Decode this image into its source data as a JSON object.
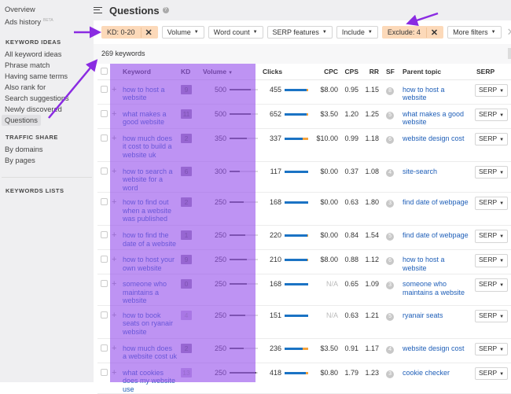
{
  "sidebar": {
    "top_items": [
      {
        "label": "Overview"
      },
      {
        "label": "Ads history",
        "badge": "BETA"
      }
    ],
    "sections": [
      {
        "title": "KEYWORD IDEAS",
        "items": [
          "All keyword ideas",
          "Phrase match",
          "Having same terms",
          "Also rank for",
          "Search suggestions",
          "Newly discovered",
          "Questions"
        ],
        "active": "Questions"
      },
      {
        "title": "TRAFFIC SHARE",
        "items": [
          "By domains",
          "By pages"
        ]
      },
      {
        "title": "KEYWORDS LISTS",
        "items": []
      }
    ]
  },
  "header": {
    "title": "Questions",
    "help_icon": "?"
  },
  "filters": {
    "kd": "KD: 0-20",
    "volume": "Volume",
    "word_count": "Word count",
    "serp_features": "SERP features",
    "include": "Include",
    "exclude": "Exclude: 4",
    "more": "More filters"
  },
  "result_count": "269 keywords",
  "columns": [
    "Keyword",
    "KD",
    "Volume",
    "Clicks",
    "CPC",
    "CPS",
    "RR",
    "SF",
    "Parent topic",
    "SERP"
  ],
  "sort": {
    "column": "Volume",
    "direction": "desc"
  },
  "colors": {
    "highlight": "#bf8ff0",
    "active_filter": "#fcd9b9",
    "link": "#1f5fb8",
    "arrow": "#8a2be2",
    "clicks_organic": "#1b73c4",
    "clicks_paid": "#f4a23c"
  },
  "rows": [
    {
      "keyword": "how to host a website",
      "kd": "9",
      "volume": "500",
      "vol_frac": 0.75,
      "clicks": "455",
      "organic_frac": 0.93,
      "cpc": "$8.00",
      "cps": "0.95",
      "rr": "1.15",
      "sf": "8",
      "parent": "how to host a website",
      "serp": "SERP"
    },
    {
      "keyword": "what makes a good website",
      "kd": "11",
      "volume": "500",
      "vol_frac": 0.75,
      "clicks": "652",
      "organic_frac": 0.93,
      "cpc": "$3.50",
      "cps": "1.20",
      "rr": "1.25",
      "sf": "5",
      "parent": "what makes a good website",
      "serp": "SERP"
    },
    {
      "keyword": "how much does it cost to build a website uk",
      "kd": "2",
      "volume": "350",
      "vol_frac": 0.6,
      "clicks": "337",
      "organic_frac": 0.78,
      "cpc": "$10.00",
      "cps": "0.99",
      "rr": "1.18",
      "sf": "6",
      "parent": "website design cost",
      "serp": "SERP"
    },
    {
      "keyword": "how to search a website for a word",
      "kd": "6",
      "volume": "300",
      "vol_frac": 0.35,
      "clicks": "117",
      "organic_frac": 1.0,
      "cpc": "$0.00",
      "cps": "0.37",
      "rr": "1.08",
      "sf": "4",
      "parent": "site-search",
      "serp": "SERP"
    },
    {
      "keyword": "how to find out when a website was published",
      "kd": "2",
      "volume": "250",
      "vol_frac": 0.5,
      "clicks": "168",
      "organic_frac": 1.0,
      "cpc": "$0.00",
      "cps": "0.63",
      "rr": "1.80",
      "sf": "3",
      "parent": "find date of webpage",
      "serp": "SERP"
    },
    {
      "keyword": "how to find the date of a website",
      "kd": "1",
      "volume": "250",
      "vol_frac": 0.55,
      "clicks": "220",
      "organic_frac": 0.97,
      "cpc": "$0.00",
      "cps": "0.84",
      "rr": "1.54",
      "sf": "5",
      "parent": "find date of webpage",
      "serp": "SERP"
    },
    {
      "keyword": "how to host your own website",
      "kd": "9",
      "volume": "250",
      "vol_frac": 0.6,
      "clicks": "210",
      "organic_frac": 0.95,
      "cpc": "$8.00",
      "cps": "0.88",
      "rr": "1.12",
      "sf": "6",
      "parent": "how to host a website",
      "serp": "SERP"
    },
    {
      "keyword": "someone who maintains a website",
      "kd": "0",
      "volume": "250",
      "vol_frac": 0.6,
      "clicks": "168",
      "organic_frac": 1.0,
      "cpc": "N/A",
      "cps": "0.65",
      "rr": "1.09",
      "sf": "3",
      "parent": "someone who maintains a website",
      "serp": "SERP"
    },
    {
      "keyword": "how to book seats on ryanair website",
      "kd": "4",
      "volume": "250",
      "vol_frac": 0.55,
      "clicks": "151",
      "organic_frac": 1.0,
      "cpc": "N/A",
      "cps": "0.63",
      "rr": "1.21",
      "sf": "5",
      "parent": "ryanair seats",
      "serp": "SERP"
    },
    {
      "keyword": "how much does a website cost uk",
      "kd": "2",
      "volume": "250",
      "vol_frac": 0.5,
      "clicks": "236",
      "organic_frac": 0.75,
      "cpc": "$3.50",
      "cps": "0.91",
      "rr": "1.17",
      "sf": "4",
      "parent": "website design cost",
      "serp": "SERP"
    },
    {
      "keyword": "what cookies does my website use",
      "kd": "13",
      "volume": "250",
      "vol_frac": 0.95,
      "clicks": "418",
      "organic_frac": 0.9,
      "cpc": "$0.80",
      "cps": "1.79",
      "rr": "1.23",
      "sf": "3",
      "parent": "cookie checker",
      "serp": "SERP"
    }
  ]
}
